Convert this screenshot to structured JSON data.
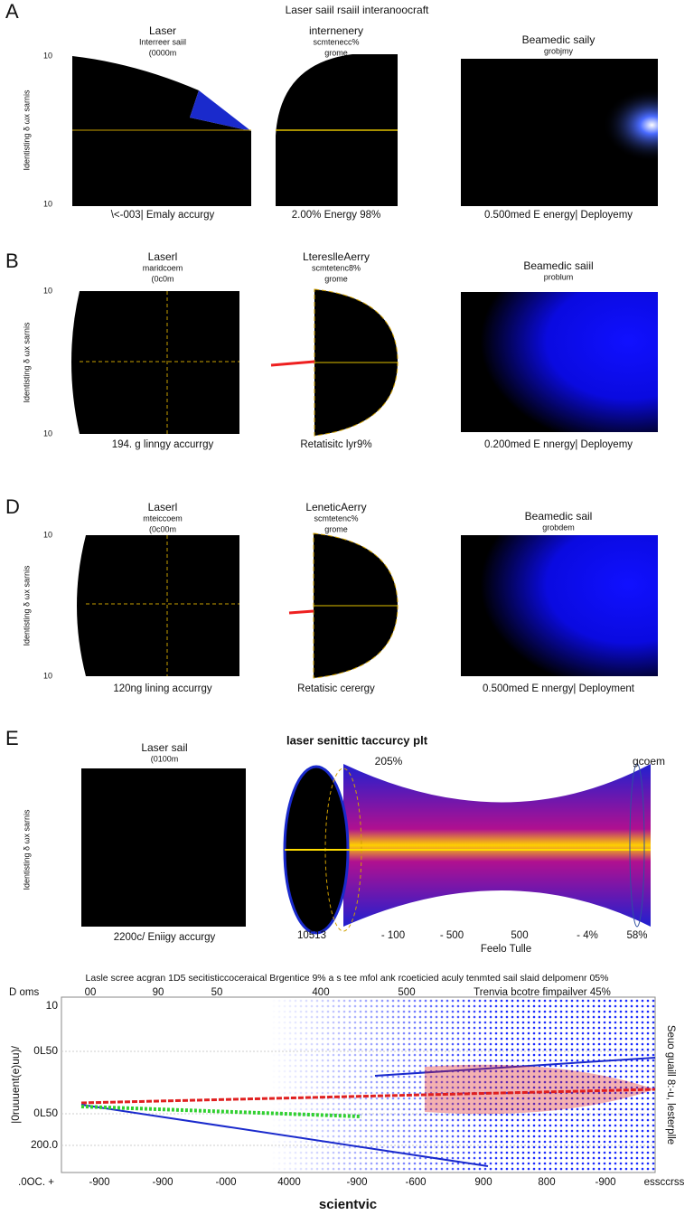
{
  "title": "Laser saiil rsaiil interanoocraft",
  "rows": [
    {
      "label": "A",
      "panels": [
        {
          "lines": [
            "Laser",
            "Interreer saiil",
            "(0000m"
          ],
          "caption": "\\<-003| Emaly accurgy"
        },
        {
          "lines": [
            "internenery",
            "scmtenecc%",
            "grome"
          ],
          "caption": "2.00% Energy 98%"
        },
        {
          "lines": [
            "Beamedic saily",
            "grobjmy"
          ],
          "caption": "0.500med E energy| Deployemy"
        }
      ]
    },
    {
      "label": "B",
      "panels": [
        {
          "lines": [
            "Laserl",
            "maridcoem",
            "(0c0m"
          ],
          "caption": "194. g linngy accurrgy"
        },
        {
          "lines": [
            "LtereslleAerry",
            "scmtetenc8%",
            "grome"
          ],
          "caption": "Retatisitc lyr9%"
        },
        {
          "lines": [
            "Beamedic saiil",
            "problum"
          ],
          "caption": "0.200med E nnergy| Deployemy"
        }
      ]
    },
    {
      "label": "D",
      "panels": [
        {
          "lines": [
            "Laserl",
            "mteiccoem",
            "(0c00m"
          ],
          "caption": "120ng lining accurrgy"
        },
        {
          "lines": [
            "LeneticAerry",
            "scmtetenc%",
            "grome"
          ],
          "caption": "Retatisic cerergy"
        },
        {
          "lines": [
            "Beamedic sail",
            "grobdem"
          ],
          "caption": "0.500med E nnergy| Deployment"
        }
      ]
    }
  ],
  "side_axis": {
    "label": "Identisting δ  ωx sarnis",
    "top": "10",
    "bottom": "10"
  },
  "panel_e": {
    "label": "E",
    "left_lines": [
      "Laser sail",
      "(0100m"
    ],
    "left_caption": "2200c/ Eniigy accurgy",
    "title": "laser senittic taccurcy plt",
    "note": "205%",
    "right_note": "gcoem",
    "ticks": [
      "10513",
      "- 100",
      "- 500",
      "500",
      "- 4%",
      "58%"
    ],
    "xlabel": "Feelo Tulle"
  },
  "bottom": {
    "caption": "Lasle scree acgran 1D5 secitisticcoceraical Brgentice 9% a s tee mfol ank rcoeticied aculy tenmted sail slaid delpomenr 05%",
    "top_left": "D oms",
    "top_ticks": [
      "00",
      "90",
      "50",
      "400",
      "500"
    ],
    "top_right": "Trenvia bcotre fimpailver 45%",
    "yticks": [
      "10",
      "0L50",
      "0L50",
      "200.0"
    ],
    "ylabel": "|0ruuuent(e)uu)/",
    "xticks": [
      ".0OC. +",
      "-900",
      "-900",
      "-000",
      "4000",
      "-900",
      "-600",
      "900",
      "800",
      "-900",
      "essccrss"
    ],
    "xlabel": "scientvic",
    "right_label": "Seuo guaill 8:-u, lesterplle"
  }
}
